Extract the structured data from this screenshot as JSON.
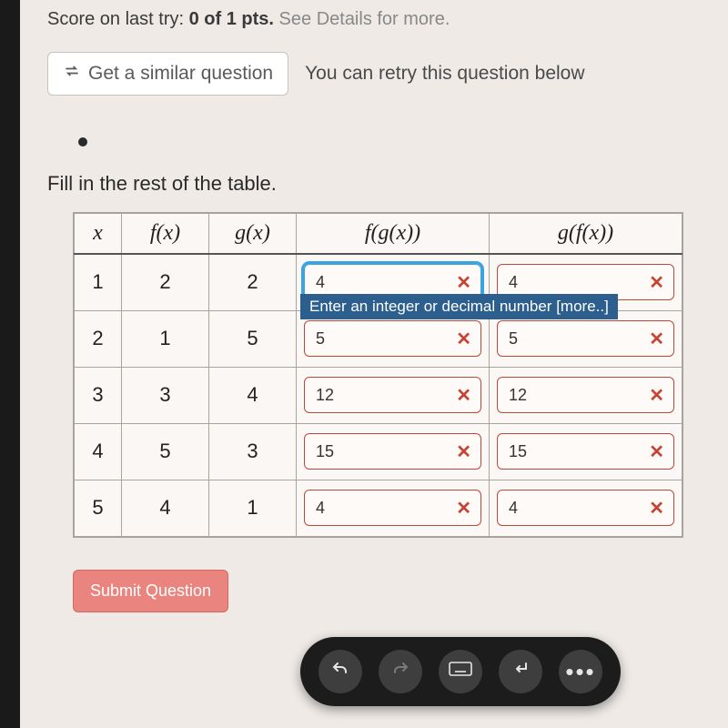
{
  "score_line_prefix": "Score on last try: ",
  "score_value": "0 of 1 pts.",
  "score_suffix": " See Details for more.",
  "similar_button_label": "Get a similar question",
  "retry_text": "You can retry this question below",
  "prompt": "Fill in the rest of the table.",
  "table": {
    "columns": [
      "x",
      "f(x)",
      "g(x)",
      "f(g(x))",
      "g(f(x))"
    ],
    "rows": [
      {
        "x": "1",
        "fx": "2",
        "gx": "2",
        "fgx": "4",
        "gfx": "4",
        "fgx_selected": true
      },
      {
        "x": "2",
        "fx": "1",
        "gx": "5",
        "fgx": "5",
        "gfx": "5"
      },
      {
        "x": "3",
        "fx": "3",
        "gx": "4",
        "fgx": "12",
        "gfx": "12"
      },
      {
        "x": "4",
        "fx": "5",
        "gx": "3",
        "fgx": "15",
        "gfx": "15"
      },
      {
        "x": "5",
        "fx": "4",
        "gx": "1",
        "fgx": "4",
        "gfx": "4"
      }
    ]
  },
  "tooltip_text": "Enter an integer or decimal number [more..]",
  "submit_label": "Submit Question",
  "colors": {
    "page_bg": "#efeae6",
    "outer_bg": "#d8d4d0",
    "answer_border_wrong": "#b94a3a",
    "answer_selected": "#3aa4e0",
    "xmark": "#c74433",
    "tooltip_bg": "#2c5f8d",
    "submit_bg": "#e9857e",
    "floatbar_bg": "#1c1c1c"
  },
  "floatbar": {
    "undo": "↶",
    "redo": "↷",
    "keyboard": "⌨",
    "enter": "↵",
    "more": "⋯"
  }
}
